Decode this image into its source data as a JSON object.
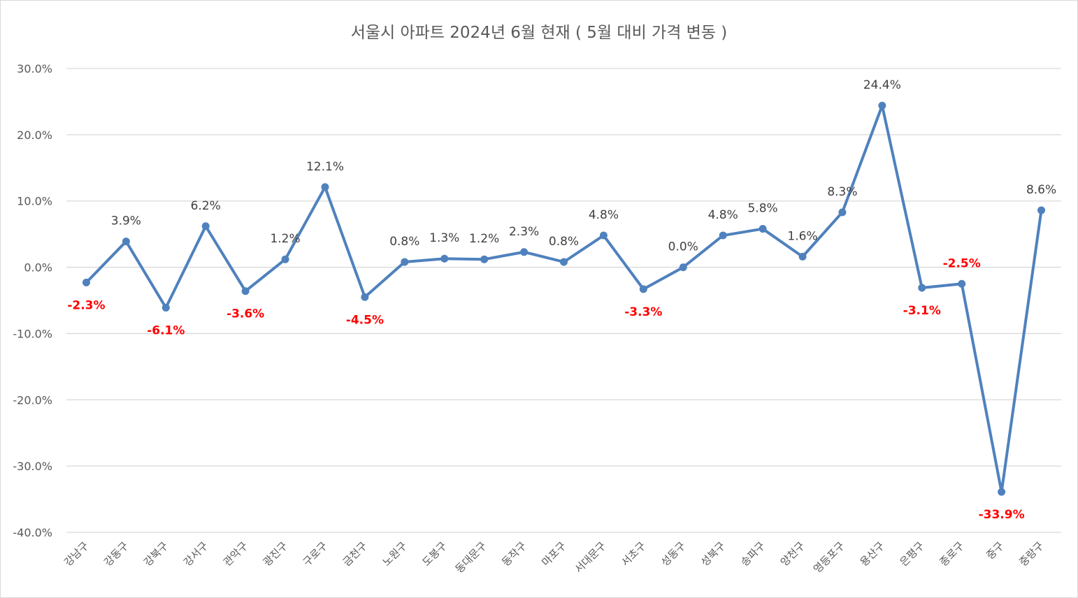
{
  "chart_data": {
    "type": "line",
    "title": "서울시 아파트 2024년 6월 현재 ( 5월 대비 가격 변동 )",
    "xlabel": "",
    "ylabel": "",
    "ylim": [
      -40,
      30
    ],
    "ytick_values": [
      30,
      20,
      10,
      0,
      -10,
      -20,
      -30,
      -40
    ],
    "ytick_labels": [
      "30.0%",
      "20.0%",
      "10.0%",
      "0.0%",
      "-10.0%",
      "-20.0%",
      "-30.0%",
      "-40.0%"
    ],
    "grid": true,
    "line_color": "#4f81bd",
    "positive_label_color": "#404040",
    "negative_label_color": "#ff0000",
    "categories": [
      "강남구",
      "강동구",
      "강북구",
      "강서구",
      "관악구",
      "광진구",
      "구로구",
      "금천구",
      "노원구",
      "도봉구",
      "동대문구",
      "동작구",
      "마포구",
      "서대문구",
      "서초구",
      "성동구",
      "성북구",
      "송파구",
      "양천구",
      "영등포구",
      "용산구",
      "은평구",
      "종로구",
      "중구",
      "중랑구"
    ],
    "values": [
      -2.3,
      3.9,
      -6.1,
      6.2,
      -3.6,
      1.2,
      12.1,
      -4.5,
      0.8,
      1.3,
      1.2,
      2.3,
      0.8,
      4.8,
      -3.3,
      0.0,
      4.8,
      5.8,
      1.6,
      8.3,
      24.4,
      -3.1,
      -2.5,
      -33.9,
      8.6
    ],
    "value_labels": [
      "-2.3%",
      "3.9%",
      "-6.1%",
      "6.2%",
      "-3.6%",
      "1.2%",
      "12.1%",
      "-4.5%",
      "0.8%",
      "1.3%",
      "1.2%",
      "2.3%",
      "0.8%",
      "4.8%",
      "-3.3%",
      "0.0%",
      "4.8%",
      "5.8%",
      "1.6%",
      "8.3%",
      "24.4%",
      "-3.1%",
      "-2.5%",
      "-33.9%",
      "8.6%"
    ],
    "label_positions": [
      "below",
      "above",
      "below",
      "above",
      "below",
      "above",
      "above",
      "below",
      "above",
      "above",
      "above",
      "above",
      "above",
      "above",
      "below",
      "above",
      "above",
      "above",
      "above",
      "above",
      "above",
      "below",
      "above",
      "below",
      "above"
    ]
  }
}
